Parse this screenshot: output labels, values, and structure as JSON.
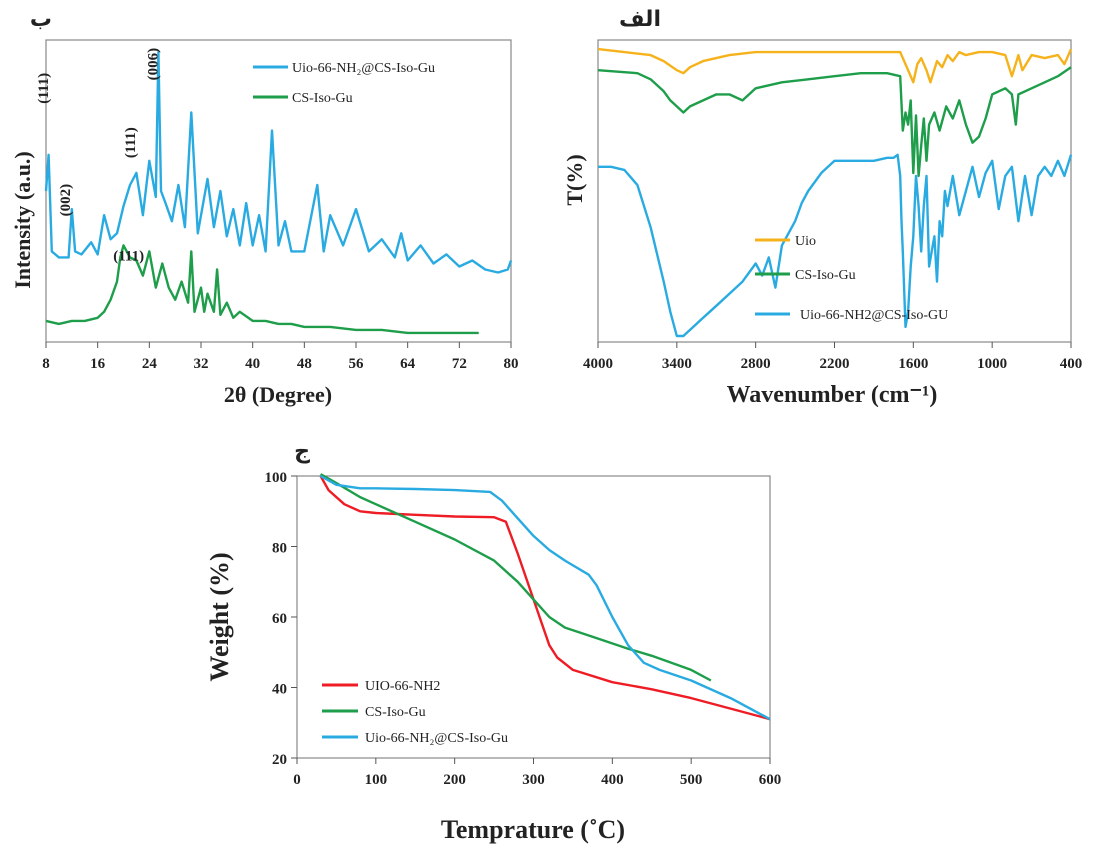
{
  "chart_data": [
    {
      "panel": "ب",
      "type": "line",
      "xlabel": "2θ (Degree)",
      "ylabel": "Intensity (a.u.)",
      "xlim": [
        8,
        80
      ],
      "xticks": [
        "8",
        "16",
        "24",
        "32",
        "40",
        "48",
        "56",
        "64",
        "72",
        "80"
      ],
      "yticks": false,
      "legend_position": "top-right",
      "annotations": [
        {
          "text": "(111)",
          "x": 8.3,
          "y": 0.84
        },
        {
          "text": "(002)",
          "x": 11.7,
          "y": 0.47
        },
        {
          "text": "(111)",
          "x": 21.8,
          "y": 0.66
        },
        {
          "text": "(006)",
          "x": 25.3,
          "y": 0.92
        },
        {
          "text": "(111)",
          "x": 20.8,
          "y": 0.27
        }
      ],
      "series": [
        {
          "name": "Uio-66-NH₂@CS-Iso-Gu",
          "color": "#29abe2",
          "x": [
            8,
            8.4,
            8.9,
            10,
            11.5,
            12,
            12.5,
            13.5,
            15,
            16,
            17,
            18,
            19,
            20,
            21,
            22,
            23,
            24,
            25,
            25.4,
            25.8,
            26.5,
            27.5,
            28.5,
            29.5,
            30.5,
            31.5,
            33,
            34,
            35,
            36,
            37,
            38,
            39,
            40,
            41,
            42,
            43,
            44,
            45,
            46,
            48,
            50,
            51,
            52,
            54,
            56,
            58,
            60,
            62,
            63,
            64,
            66,
            68,
            70,
            72,
            74,
            76,
            78,
            79.5,
            80
          ],
          "y": [
            0.5,
            0.62,
            0.3,
            0.28,
            0.28,
            0.44,
            0.3,
            0.29,
            0.33,
            0.29,
            0.42,
            0.34,
            0.36,
            0.45,
            0.52,
            0.56,
            0.42,
            0.6,
            0.48,
            0.96,
            0.5,
            0.46,
            0.4,
            0.52,
            0.38,
            0.76,
            0.36,
            0.54,
            0.38,
            0.5,
            0.35,
            0.44,
            0.32,
            0.46,
            0.32,
            0.42,
            0.3,
            0.7,
            0.32,
            0.4,
            0.3,
            0.3,
            0.52,
            0.3,
            0.42,
            0.32,
            0.44,
            0.3,
            0.34,
            0.28,
            0.36,
            0.27,
            0.32,
            0.26,
            0.29,
            0.25,
            0.27,
            0.24,
            0.23,
            0.24,
            0.27
          ]
        },
        {
          "name": "CS-Iso-Gu",
          "color": "#1e9e4a",
          "x": [
            8,
            10,
            12,
            14,
            16,
            17,
            18,
            19,
            19.5,
            20,
            21,
            22,
            23,
            24,
            25,
            26,
            27,
            28,
            29,
            30,
            30.5,
            31,
            32,
            32.5,
            33,
            34,
            34.5,
            35,
            36,
            37,
            38,
            40,
            42,
            44,
            46,
            48,
            50,
            52,
            56,
            60,
            64,
            68,
            72,
            75
          ],
          "y": [
            0.07,
            0.06,
            0.07,
            0.07,
            0.08,
            0.1,
            0.14,
            0.2,
            0.28,
            0.32,
            0.28,
            0.27,
            0.22,
            0.3,
            0.18,
            0.26,
            0.18,
            0.14,
            0.2,
            0.13,
            0.3,
            0.1,
            0.18,
            0.1,
            0.16,
            0.1,
            0.24,
            0.09,
            0.13,
            0.08,
            0.1,
            0.07,
            0.07,
            0.06,
            0.06,
            0.05,
            0.05,
            0.05,
            0.04,
            0.04,
            0.03,
            0.03,
            0.03,
            0.03
          ]
        }
      ]
    },
    {
      "panel": "الف",
      "type": "line",
      "xlabel": "Wavenumber (cm⁻¹)",
      "ylabel": "T(%)",
      "xlim": [
        4000,
        400
      ],
      "xticks": [
        "4000",
        "3400",
        "2800",
        "2200",
        "1600",
        "1000",
        "400"
      ],
      "yticks": false,
      "legend_position": "bottom-center",
      "series": [
        {
          "name": "Uio",
          "color": "#f5b21b",
          "x": [
            4000,
            3800,
            3600,
            3500,
            3400,
            3350,
            3300,
            3200,
            3000,
            2800,
            2600,
            2400,
            2200,
            2000,
            1800,
            1700,
            1650,
            1600,
            1570,
            1540,
            1500,
            1470,
            1420,
            1380,
            1340,
            1300,
            1250,
            1200,
            1100,
            1000,
            900,
            850,
            800,
            770,
            700,
            600,
            500,
            450,
            400
          ],
          "y": [
            0.97,
            0.96,
            0.95,
            0.93,
            0.9,
            0.89,
            0.91,
            0.93,
            0.95,
            0.96,
            0.96,
            0.96,
            0.96,
            0.96,
            0.96,
            0.96,
            0.91,
            0.86,
            0.92,
            0.94,
            0.9,
            0.86,
            0.93,
            0.91,
            0.95,
            0.93,
            0.96,
            0.95,
            0.96,
            0.96,
            0.95,
            0.88,
            0.95,
            0.9,
            0.95,
            0.94,
            0.95,
            0.92,
            0.97
          ]
        },
        {
          "name": "CS-Iso-Gu",
          "color": "#1e9e4a",
          "x": [
            4000,
            3700,
            3600,
            3500,
            3450,
            3400,
            3350,
            3300,
            3200,
            3100,
            3000,
            2900,
            2800,
            2600,
            2400,
            2200,
            2000,
            1800,
            1700,
            1680,
            1660,
            1640,
            1620,
            1600,
            1580,
            1560,
            1540,
            1520,
            1500,
            1480,
            1440,
            1400,
            1350,
            1300,
            1250,
            1200,
            1150,
            1100,
            1050,
            1000,
            900,
            850,
            820,
            800,
            700,
            600,
            500,
            400
          ],
          "y": [
            0.9,
            0.89,
            0.87,
            0.83,
            0.8,
            0.78,
            0.76,
            0.78,
            0.8,
            0.82,
            0.82,
            0.8,
            0.84,
            0.86,
            0.87,
            0.88,
            0.89,
            0.89,
            0.88,
            0.7,
            0.76,
            0.72,
            0.8,
            0.56,
            0.75,
            0.55,
            0.65,
            0.74,
            0.6,
            0.72,
            0.76,
            0.7,
            0.78,
            0.74,
            0.8,
            0.72,
            0.66,
            0.68,
            0.74,
            0.82,
            0.84,
            0.82,
            0.72,
            0.82,
            0.84,
            0.86,
            0.88,
            0.91
          ]
        },
        {
          "name": "Uio-66-NH2@CS-Iso-GU",
          "color": "#29abe2",
          "x": [
            4000,
            3900,
            3800,
            3700,
            3600,
            3500,
            3450,
            3400,
            3350,
            3300,
            3250,
            3200,
            3150,
            3100,
            3000,
            2900,
            2800,
            2750,
            2700,
            2650,
            2600,
            2550,
            2500,
            2450,
            2400,
            2300,
            2200,
            2100,
            2000,
            1900,
            1800,
            1750,
            1720,
            1700,
            1690,
            1680,
            1660,
            1640,
            1620,
            1600,
            1580,
            1560,
            1540,
            1520,
            1500,
            1480,
            1460,
            1440,
            1420,
            1400,
            1380,
            1360,
            1340,
            1300,
            1250,
            1200,
            1150,
            1100,
            1050,
            1000,
            950,
            900,
            850,
            800,
            750,
            700,
            650,
            600,
            550,
            500,
            450,
            400
          ],
          "y": [
            0.58,
            0.58,
            0.57,
            0.52,
            0.38,
            0.2,
            0.1,
            0.02,
            0.02,
            0.04,
            0.06,
            0.08,
            0.1,
            0.12,
            0.16,
            0.2,
            0.26,
            0.22,
            0.28,
            0.18,
            0.32,
            0.36,
            0.4,
            0.46,
            0.5,
            0.56,
            0.6,
            0.6,
            0.6,
            0.6,
            0.61,
            0.61,
            0.62,
            0.55,
            0.4,
            0.3,
            0.05,
            0.1,
            0.25,
            0.35,
            0.55,
            0.45,
            0.3,
            0.45,
            0.55,
            0.25,
            0.3,
            0.35,
            0.2,
            0.4,
            0.35,
            0.5,
            0.45,
            0.55,
            0.42,
            0.5,
            0.58,
            0.48,
            0.56,
            0.6,
            0.44,
            0.55,
            0.58,
            0.4,
            0.55,
            0.42,
            0.55,
            0.58,
            0.55,
            0.6,
            0.55,
            0.62
          ]
        }
      ]
    },
    {
      "panel": "ج",
      "type": "line",
      "xlabel": "Temprature (˚C)",
      "ylabel": "Weight (%)",
      "xlim": [
        0,
        600
      ],
      "ylim": [
        20,
        100
      ],
      "xticks": [
        "0",
        "100",
        "200",
        "300",
        "400",
        "500",
        "600"
      ],
      "yticks": [
        "20",
        "40",
        "60",
        "80",
        "100"
      ],
      "legend_position": "bottom-left",
      "series": [
        {
          "name": "UIO-66-NH2",
          "color": "#ee1c24",
          "x": [
            30,
            40,
            60,
            80,
            100,
            150,
            200,
            250,
            265,
            280,
            300,
            320,
            330,
            350,
            400,
            450,
            500,
            550,
            600
          ],
          "y": [
            100,
            96,
            92,
            90,
            89.5,
            89,
            88.5,
            88.3,
            87,
            78,
            65,
            52,
            48.5,
            45,
            41.5,
            39.5,
            37,
            34,
            31
          ]
        },
        {
          "name": "CS-Iso-Gu",
          "color": "#1e9e4a",
          "x": [
            30,
            50,
            80,
            100,
            150,
            200,
            250,
            280,
            300,
            320,
            340,
            380,
            420,
            450,
            500,
            525
          ],
          "y": [
            100.5,
            98,
            94,
            92,
            87,
            82,
            76,
            70,
            65,
            60,
            57,
            54,
            51,
            49,
            45,
            42
          ]
        },
        {
          "name": "Uio-66-NH₂@CS-Iso-Gu",
          "color": "#29abe2",
          "x": [
            30,
            50,
            80,
            100,
            150,
            200,
            245,
            260,
            280,
            300,
            320,
            340,
            370,
            380,
            400,
            420,
            440,
            460,
            500,
            550,
            600
          ],
          "y": [
            100,
            97.5,
            96.5,
            96.5,
            96.3,
            96,
            95.5,
            93,
            88,
            83,
            79,
            76,
            72,
            69,
            60,
            52,
            47,
            45,
            42,
            37,
            31
          ]
        }
      ]
    }
  ]
}
